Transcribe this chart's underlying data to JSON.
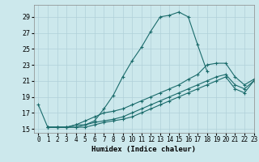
{
  "xlabel": "Humidex (Indice chaleur)",
  "ylabel": "",
  "xlim": [
    -0.5,
    23
  ],
  "ylim": [
    14.5,
    30.5
  ],
  "yticks": [
    15,
    17,
    19,
    21,
    23,
    25,
    27,
    29
  ],
  "xticks": [
    0,
    1,
    2,
    3,
    4,
    5,
    6,
    7,
    8,
    9,
    10,
    11,
    12,
    13,
    14,
    15,
    16,
    17,
    18,
    19,
    20,
    21,
    22,
    23
  ],
  "bg_color": "#cce8ec",
  "grid_color": "#b0d0d8",
  "line_color": "#1a6b6b",
  "lines": [
    {
      "x": [
        0,
        1,
        2,
        3,
        4,
        5,
        6,
        7,
        8,
        9,
        10,
        11,
        12,
        13,
        14,
        15,
        16,
        17,
        18
      ],
      "y": [
        18.0,
        15.2,
        15.2,
        15.2,
        15.5,
        15.5,
        16.0,
        17.5,
        19.2,
        21.5,
        23.5,
        25.2,
        27.2,
        29.0,
        29.2,
        29.6,
        29.0,
        25.5,
        22.2
      ]
    },
    {
      "x": [
        1,
        2,
        3,
        4,
        5,
        6,
        7,
        8,
        9,
        10,
        11,
        12,
        13,
        14,
        15,
        16,
        17,
        18,
        19,
        20,
        21,
        22,
        23
      ],
      "y": [
        15.2,
        15.2,
        15.2,
        15.5,
        16.0,
        16.5,
        17.0,
        17.2,
        17.5,
        18.0,
        18.5,
        19.0,
        19.5,
        20.0,
        20.5,
        21.2,
        21.8,
        23.0,
        23.2,
        23.2,
        21.5,
        20.5,
        21.2
      ]
    },
    {
      "x": [
        1,
        2,
        3,
        4,
        5,
        6,
        7,
        8,
        9,
        10,
        11,
        12,
        13,
        14,
        15,
        16,
        17,
        18,
        19,
        20,
        21,
        22,
        23
      ],
      "y": [
        15.2,
        15.2,
        15.2,
        15.2,
        15.5,
        15.8,
        16.0,
        16.2,
        16.5,
        17.0,
        17.5,
        18.0,
        18.5,
        19.0,
        19.5,
        20.0,
        20.5,
        21.0,
        21.5,
        21.8,
        20.5,
        20.0,
        21.0
      ]
    },
    {
      "x": [
        1,
        2,
        3,
        4,
        5,
        6,
        7,
        8,
        9,
        10,
        11,
        12,
        13,
        14,
        15,
        16,
        17,
        18,
        19,
        20,
        21,
        22,
        23
      ],
      "y": [
        15.2,
        15.2,
        15.2,
        15.2,
        15.2,
        15.5,
        15.8,
        16.0,
        16.2,
        16.5,
        17.0,
        17.5,
        18.0,
        18.5,
        19.0,
        19.5,
        20.0,
        20.5,
        21.0,
        21.5,
        20.0,
        19.5,
        21.0
      ]
    }
  ]
}
